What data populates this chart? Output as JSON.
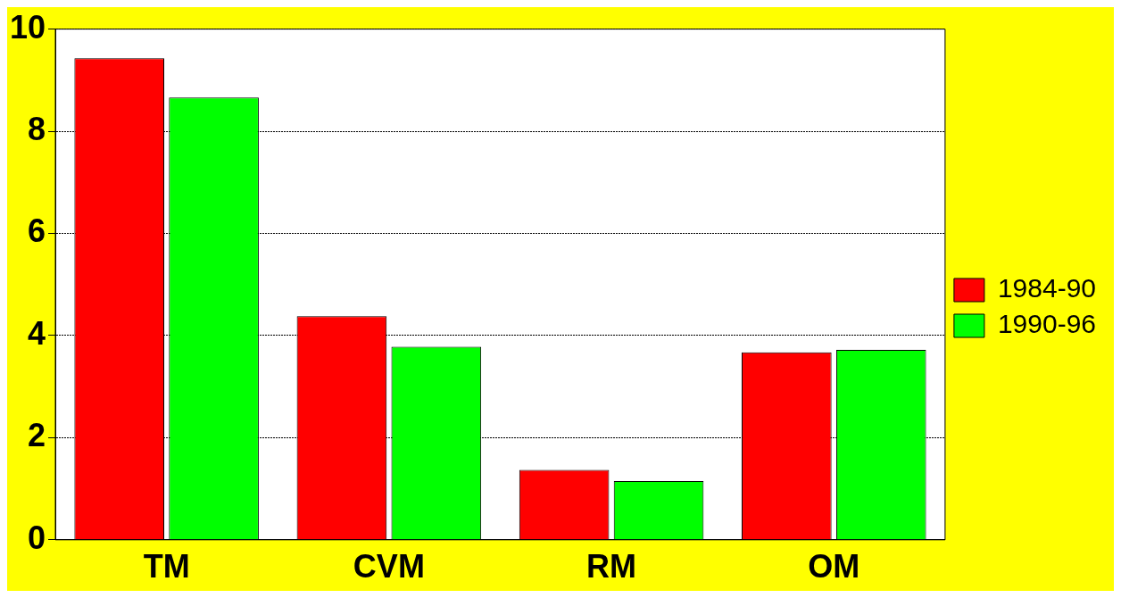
{
  "chart_data": {
    "type": "bar",
    "categories": [
      "TM",
      "CVM",
      "RM",
      "OM"
    ],
    "series": [
      {
        "name": "1984-90",
        "color": "#ff0000",
        "values": [
          9.43,
          4.38,
          1.37,
          3.67
        ]
      },
      {
        "name": "1990-96",
        "color": "#00ff00",
        "values": [
          8.66,
          3.78,
          1.15,
          3.72
        ]
      }
    ],
    "ylim": [
      0,
      10
    ],
    "yticks": [
      0,
      2,
      4,
      6,
      8,
      10
    ],
    "grid": "y",
    "legend": "right"
  }
}
